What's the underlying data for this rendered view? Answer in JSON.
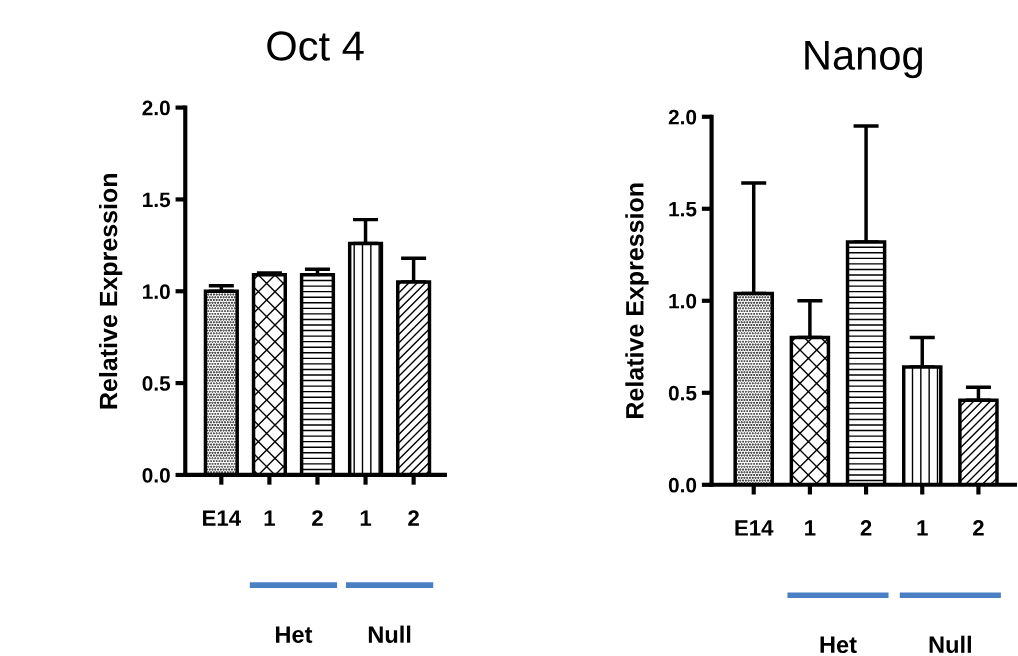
{
  "chart_data": [
    {
      "type": "bar",
      "title": "Oct 4",
      "ylabel": "Relative Expression",
      "categories": [
        "E14",
        "1",
        "2",
        "1",
        "2"
      ],
      "values": [
        1.0,
        1.09,
        1.09,
        1.26,
        1.05
      ],
      "errors": [
        [
          1.0,
          1.03
        ],
        [
          1.09,
          1.1
        ],
        [
          1.09,
          1.12
        ],
        [
          1.26,
          1.39
        ],
        [
          1.05,
          1.18
        ]
      ],
      "ylim": [
        0,
        2.0
      ],
      "yticks": [
        {
          "value": 0,
          "label": "0.0"
        },
        {
          "value": 0.5,
          "label": "0.5"
        },
        {
          "value": 1,
          "label": "1.0"
        },
        {
          "value": 1.5,
          "label": "1.5"
        },
        {
          "value": 2,
          "label": "2.0"
        }
      ],
      "annotations": [
        "Het",
        "Null"
      ],
      "grid": false
    },
    {
      "type": "bar",
      "title": "Nanog",
      "ylabel": "Relative Expression",
      "categories": [
        "E14",
        "1",
        "2",
        "1",
        "2"
      ],
      "values": [
        1.04,
        0.8,
        1.32,
        0.64,
        0.46
      ],
      "errors": [
        [
          1.04,
          1.64
        ],
        [
          0.8,
          1.0
        ],
        [
          1.32,
          1.95
        ],
        [
          0.64,
          0.8
        ],
        [
          0.46,
          0.53
        ]
      ],
      "ylim": [
        0,
        2.0
      ],
      "yticks": [
        {
          "value": 0,
          "label": "0.0"
        },
        0.5,
        {
          "value": 1,
          "label": "1.0"
        },
        1.5,
        {
          "value": 2,
          "label": "2.0"
        }
      ],
      "annotations": [
        "Het",
        "Null"
      ],
      "grid": false
    }
  ]
}
